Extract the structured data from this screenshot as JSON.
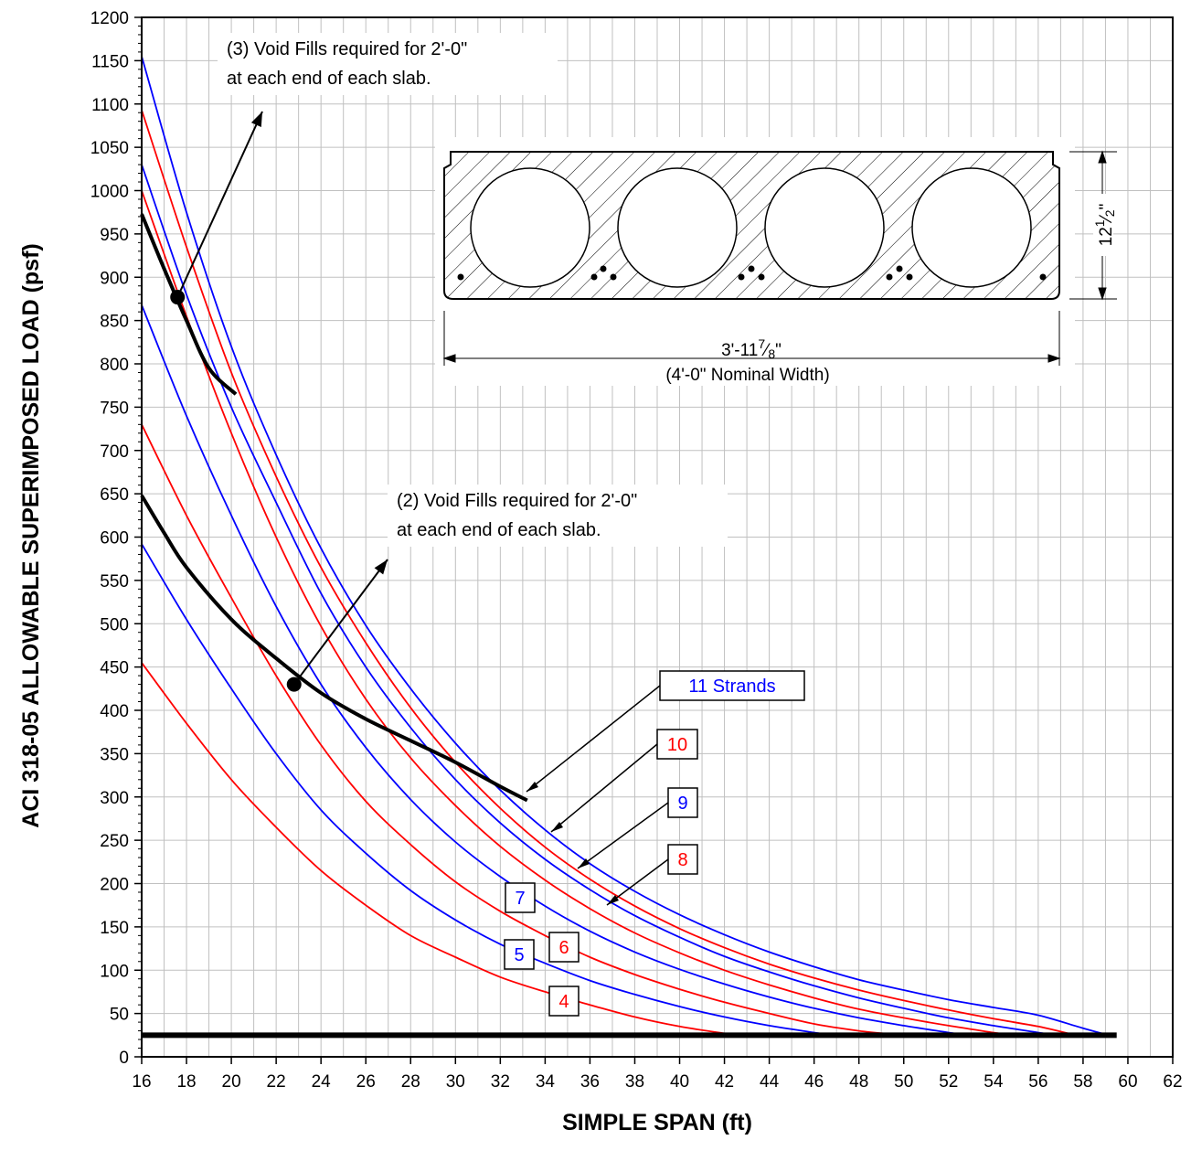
{
  "chart_data": {
    "type": "line",
    "xlabel": "SIMPLE SPAN (ft)",
    "ylabel": "ACI 318-05 ALLOWABLE SUPERIMPOSED LOAD (psf)",
    "xlim": [
      16,
      62
    ],
    "ylim": [
      0,
      1200
    ],
    "x_ticks": [
      "16",
      "18",
      "20",
      "22",
      "24",
      "26",
      "28",
      "30",
      "32",
      "34",
      "36",
      "38",
      "40",
      "42",
      "44",
      "46",
      "48",
      "50",
      "52",
      "54",
      "56",
      "58",
      "60",
      "62"
    ],
    "y_ticks": [
      "0",
      "50",
      "100",
      "150",
      "200",
      "250",
      "300",
      "350",
      "400",
      "450",
      "500",
      "550",
      "600",
      "650",
      "700",
      "750",
      "800",
      "850",
      "900",
      "950",
      "1000",
      "1050",
      "1100",
      "1150",
      "1200"
    ],
    "grid": true,
    "series": [
      {
        "name": "4",
        "color": "#ff0000",
        "x": [
          16,
          18,
          20,
          22,
          24,
          26,
          28,
          30,
          32,
          34,
          36,
          38,
          40,
          42
        ],
        "y": [
          455,
          385,
          320,
          265,
          215,
          175,
          140,
          115,
          92,
          75,
          60,
          46,
          35,
          27
        ]
      },
      {
        "name": "5",
        "color": "#0000ff",
        "x": [
          16,
          18,
          20,
          22,
          24,
          26,
          28,
          30,
          32,
          34,
          36,
          38,
          40,
          42,
          44,
          46,
          46.5
        ],
        "y": [
          592,
          505,
          425,
          350,
          285,
          235,
          192,
          158,
          130,
          108,
          88,
          72,
          58,
          46,
          36,
          28,
          26
        ]
      },
      {
        "name": "6",
        "color": "#ff0000",
        "x": [
          16,
          18,
          20,
          22,
          24,
          26,
          28,
          30,
          32,
          34,
          36,
          38,
          40,
          42,
          44,
          46,
          48,
          49.5
        ],
        "y": [
          730,
          625,
          530,
          440,
          360,
          295,
          245,
          202,
          168,
          140,
          115,
          95,
          78,
          63,
          50,
          38,
          30,
          26
        ]
      },
      {
        "name": "7",
        "color": "#0000ff",
        "x": [
          16,
          18,
          20,
          22,
          24,
          26,
          28,
          30,
          32,
          34,
          36,
          38,
          40,
          42,
          44,
          46,
          48,
          50,
          52,
          52.5
        ],
        "y": [
          868,
          740,
          625,
          520,
          430,
          357,
          297,
          248,
          208,
          174,
          145,
          121,
          101,
          84,
          69,
          56,
          45,
          36,
          28,
          26
        ]
      },
      {
        "name": "8",
        "color": "#ff0000",
        "x": [
          16,
          18,
          20,
          22,
          24,
          26,
          28,
          30,
          32,
          34,
          36,
          38,
          40,
          42,
          44,
          46,
          48,
          50,
          52,
          54,
          54.5
        ],
        "y": [
          1000,
          855,
          720,
          600,
          497,
          413,
          345,
          290,
          243,
          204,
          171,
          143,
          120,
          100,
          83,
          68,
          55,
          45,
          36,
          28,
          26
        ]
      },
      {
        "name": "9",
        "color": "#0000ff",
        "x": [
          16,
          18,
          20,
          22,
          24,
          26,
          28,
          30,
          32,
          34,
          36,
          38,
          40,
          42,
          44,
          46,
          48,
          50,
          52,
          54,
          56,
          56.5
        ],
        "y": [
          1030,
          880,
          750,
          640,
          535,
          450,
          380,
          320,
          270,
          228,
          193,
          163,
          138,
          116,
          98,
          82,
          68,
          56,
          45,
          36,
          28,
          26
        ]
      },
      {
        "name": "10",
        "color": "#ff0000",
        "x": [
          16,
          18,
          20,
          22,
          24,
          26,
          28,
          30,
          32,
          34,
          36,
          38,
          40,
          42,
          44,
          46,
          48,
          50,
          52,
          54,
          56,
          57.5
        ],
        "y": [
          1093,
          935,
          790,
          670,
          565,
          478,
          403,
          340,
          287,
          242,
          205,
          174,
          148,
          126,
          107,
          91,
          77,
          65,
          54,
          44,
          35,
          26
        ]
      },
      {
        "name": "11 Strands",
        "color": "#0000ff",
        "x": [
          16,
          18,
          20,
          22,
          24,
          26,
          28,
          30,
          32,
          34,
          36,
          38,
          40,
          42,
          44,
          46,
          48,
          50,
          52,
          54,
          56,
          58,
          59
        ],
        "y": [
          1155,
          975,
          820,
          695,
          587,
          498,
          425,
          362,
          308,
          262,
          223,
          191,
          164,
          141,
          121,
          104,
          89,
          77,
          66,
          57,
          48,
          33,
          26
        ]
      }
    ],
    "limit_curves": [
      {
        "name": "(3) void fills",
        "x": [
          16,
          17,
          18,
          19,
          20.2
        ],
        "y": [
          973,
          910,
          850,
          795,
          765
        ]
      },
      {
        "name": "(2) void fills",
        "x": [
          16,
          17,
          18,
          20,
          22,
          24,
          26,
          28,
          30,
          32,
          33.2
        ],
        "y": [
          648,
          605,
          565,
          505,
          460,
          420,
          390,
          365,
          340,
          312,
          296
        ]
      }
    ],
    "baseline": {
      "y": 25,
      "x_start": 16,
      "x_end": 59.5
    },
    "annotations": [
      {
        "lines": [
          "(3) Void Fills required for 2'-0\"",
          "at each end of each slab."
        ],
        "point": [
          17.6,
          877
        ]
      },
      {
        "lines": [
          "(2) Void Fills required for 2'-0\"",
          "at each end of each slab."
        ],
        "point": [
          22.8,
          430
        ]
      }
    ],
    "series_labels": [
      "4",
      "5",
      "6",
      "7",
      "8",
      "9",
      "10",
      "11 Strands"
    ],
    "section": {
      "width_label": "3'-11",
      "width_frac_num": "7",
      "width_frac_den": "8",
      "width_unit": "\"",
      "nominal": "(4'-0\" Nominal Width)",
      "depth_label": "12",
      "depth_frac_num": "1",
      "depth_frac_den": "2",
      "depth_unit": "\""
    },
    "colors": {
      "red": "#ff0000",
      "blue": "#0000ff",
      "grid": "#c0c0c0"
    }
  }
}
